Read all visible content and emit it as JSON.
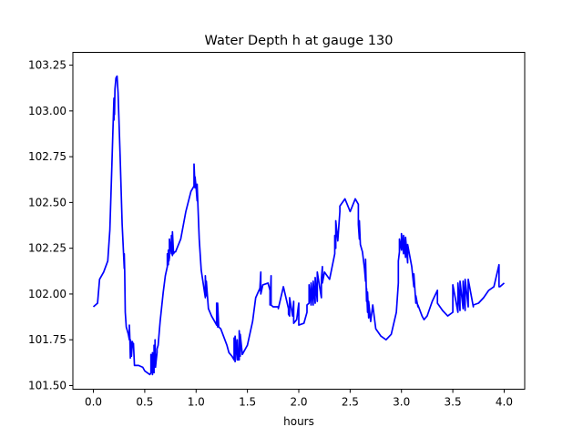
{
  "chart_data": {
    "type": "line",
    "title": "Water Depth h at gauge 130",
    "xlabel": "hours",
    "ylabel": "",
    "xlim": [
      -0.2,
      4.2
    ],
    "ylim": [
      101.48,
      103.32
    ],
    "xticks": [
      0.0,
      0.5,
      1.0,
      1.5,
      2.0,
      2.5,
      3.0,
      3.5,
      4.0
    ],
    "xtick_labels": [
      "0.0",
      "0.5",
      "1.0",
      "1.5",
      "2.0",
      "2.5",
      "3.0",
      "3.5",
      "4.0"
    ],
    "yticks": [
      101.5,
      101.75,
      102.0,
      102.25,
      102.5,
      102.75,
      103.0,
      103.25
    ],
    "ytick_labels": [
      "101.50",
      "101.75",
      "102.00",
      "102.25",
      "102.50",
      "102.75",
      "103.00",
      "103.25"
    ],
    "grid": false,
    "series": [
      {
        "color": "#0000ff",
        "x": [
          0.0,
          0.04,
          0.06,
          0.06,
          0.1,
          0.14,
          0.16,
          0.18,
          0.19,
          0.2,
          0.2,
          0.205,
          0.205,
          0.21,
          0.22,
          0.23,
          0.24,
          0.26,
          0.28,
          0.3,
          0.3,
          0.305,
          0.31,
          0.32,
          0.34,
          0.35,
          0.35,
          0.355,
          0.36,
          0.36,
          0.365,
          0.37,
          0.38,
          0.38,
          0.39,
          0.4,
          0.44,
          0.48,
          0.5,
          0.55,
          0.56,
          0.56,
          0.575,
          0.575,
          0.59,
          0.59,
          0.6,
          0.6,
          0.605,
          0.61,
          0.62,
          0.62,
          0.63,
          0.65,
          0.68,
          0.7,
          0.72,
          0.72,
          0.73,
          0.73,
          0.735,
          0.74,
          0.74,
          0.76,
          0.76,
          0.77,
          0.77,
          0.78,
          0.78,
          0.79,
          0.8,
          0.85,
          0.9,
          0.95,
          0.98,
          0.98,
          0.99,
          0.99,
          1.0,
          1.01,
          1.01,
          1.03,
          1.05,
          1.09,
          1.09,
          1.1,
          1.1,
          1.12,
          1.15,
          1.18,
          1.2,
          1.2,
          1.21,
          1.21,
          1.22,
          1.22,
          1.24,
          1.26,
          1.3,
          1.32,
          1.35,
          1.37,
          1.37,
          1.38,
          1.38,
          1.4,
          1.4,
          1.41,
          1.42,
          1.42,
          1.43,
          1.43,
          1.45,
          1.5,
          1.55,
          1.58,
          1.62,
          1.62,
          1.63,
          1.63,
          1.65,
          1.7,
          1.72,
          1.72,
          1.73,
          1.73,
          1.75,
          1.8,
          1.8,
          1.85,
          1.9,
          1.9,
          1.91,
          1.91,
          1.94,
          1.95,
          1.95,
          1.98,
          2.0,
          2.0,
          2.05,
          2.08,
          2.08,
          2.1,
          2.1,
          2.12,
          2.12,
          2.14,
          2.14,
          2.16,
          2.16,
          2.18,
          2.18,
          2.22,
          2.22,
          2.23,
          2.23,
          2.25,
          2.3,
          2.35,
          2.35,
          2.36,
          2.36,
          2.38,
          2.4,
          2.4,
          2.45,
          2.5,
          2.55,
          2.58,
          2.58,
          2.59,
          2.59,
          2.6,
          2.62,
          2.64,
          2.65,
          2.65,
          2.66,
          2.66,
          2.67,
          2.67,
          2.68,
          2.68,
          2.7,
          2.72,
          2.75,
          2.8,
          2.85,
          2.9,
          2.95,
          2.97,
          2.97,
          2.98,
          2.98,
          3.0,
          3.0,
          3.02,
          3.02,
          3.04,
          3.04,
          3.06,
          3.06,
          3.1,
          3.12,
          3.12,
          3.14,
          3.14,
          3.16,
          3.16,
          3.2,
          3.22,
          3.22,
          3.25,
          3.3,
          3.35,
          3.35,
          3.4,
          3.45,
          3.5,
          3.5,
          3.55,
          3.55,
          3.57,
          3.57,
          3.6,
          3.6,
          3.62,
          3.62,
          3.65,
          3.65,
          3.7,
          3.7,
          3.75,
          3.8,
          3.85,
          3.9,
          3.95,
          3.95,
          3.96,
          4.0
        ],
        "y": [
          101.93,
          101.95,
          102.08,
          102.08,
          102.12,
          102.18,
          102.35,
          102.7,
          102.9,
          103.07,
          102.95,
          103.06,
          102.98,
          103.12,
          103.18,
          103.19,
          103.1,
          102.75,
          102.38,
          102.14,
          102.22,
          102.12,
          101.9,
          101.82,
          101.78,
          101.75,
          101.83,
          101.75,
          101.65,
          101.75,
          101.74,
          101.66,
          101.74,
          101.73,
          101.73,
          101.61,
          101.61,
          101.6,
          101.58,
          101.56,
          101.57,
          101.67,
          101.56,
          101.68,
          101.57,
          101.72,
          101.63,
          101.75,
          101.6,
          101.63,
          101.68,
          101.7,
          101.72,
          101.85,
          102.01,
          102.1,
          102.15,
          102.22,
          102.16,
          102.24,
          102.18,
          102.2,
          102.3,
          102.22,
          102.32,
          102.21,
          102.34,
          102.22,
          102.22,
          102.23,
          102.23,
          102.3,
          102.45,
          102.56,
          102.59,
          102.71,
          102.58,
          102.64,
          102.58,
          102.51,
          102.6,
          102.3,
          102.13,
          101.98,
          102.1,
          101.99,
          102.07,
          101.92,
          101.88,
          101.85,
          101.83,
          101.95,
          101.82,
          101.95,
          101.82,
          101.82,
          101.81,
          101.78,
          101.72,
          101.68,
          101.66,
          101.64,
          101.76,
          101.63,
          101.77,
          101.64,
          101.75,
          101.64,
          101.64,
          101.8,
          101.66,
          101.78,
          101.67,
          101.72,
          101.85,
          101.98,
          102.03,
          102.02,
          102.12,
          102.0,
          102.05,
          102.06,
          102.02,
          101.94,
          102.1,
          101.94,
          101.93,
          101.93,
          101.92,
          102.04,
          101.92,
          101.89,
          101.88,
          101.98,
          101.88,
          101.96,
          101.84,
          101.86,
          101.95,
          101.83,
          101.84,
          101.9,
          101.94,
          101.95,
          102.05,
          101.94,
          102.06,
          101.94,
          102.07,
          101.95,
          102.09,
          101.96,
          102.12,
          101.98,
          102.08,
          102.15,
          102.06,
          102.12,
          102.08,
          102.22,
          102.32,
          102.25,
          102.4,
          102.29,
          102.45,
          102.48,
          102.52,
          102.45,
          102.52,
          102.49,
          102.38,
          102.3,
          102.4,
          102.27,
          102.23,
          102.14,
          102.07,
          102.19,
          101.96,
          102.03,
          101.9,
          102.01,
          101.87,
          101.96,
          101.85,
          101.94,
          101.81,
          101.77,
          101.75,
          101.78,
          101.9,
          102.06,
          102.18,
          102.23,
          102.3,
          102.24,
          102.33,
          102.22,
          102.32,
          102.2,
          102.31,
          102.17,
          102.27,
          102.15,
          102.04,
          102.11,
          101.95,
          101.99,
          101.93,
          101.94,
          101.88,
          101.86,
          101.86,
          101.88,
          101.96,
          102.02,
          101.95,
          101.91,
          101.88,
          101.9,
          102.05,
          101.9,
          102.06,
          101.91,
          102.07,
          101.92,
          102.07,
          101.91,
          102.08,
          101.93,
          102.08,
          101.93,
          101.94,
          101.95,
          101.98,
          102.02,
          102.04,
          102.16,
          102.04,
          102.04,
          102.06
        ]
      }
    ]
  }
}
